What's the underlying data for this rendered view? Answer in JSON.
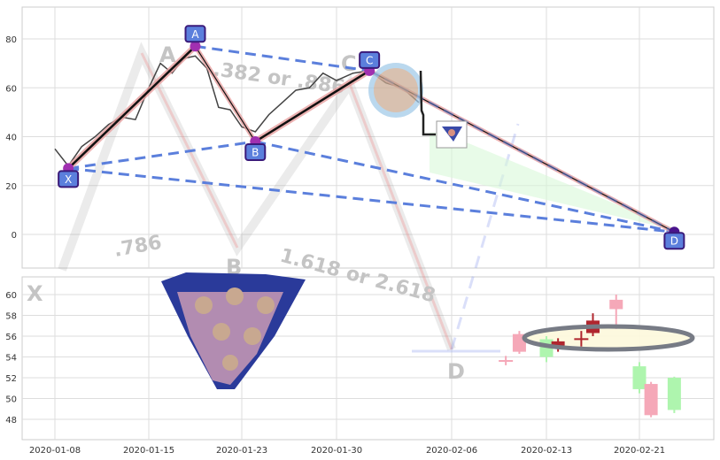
{
  "chart_data": [
    {
      "type": "line",
      "panel": "top",
      "ylim": [
        -14,
        92
      ],
      "yticks": [
        0,
        20,
        40,
        60,
        80
      ],
      "grid": true,
      "price_series": [
        [
          "2020-01-08",
          35
        ],
        [
          "2020-01-09",
          28
        ],
        [
          "2020-01-10",
          36
        ],
        [
          "2020-01-11",
          40
        ],
        [
          "2020-01-12",
          45
        ],
        [
          "2020-01-13",
          48
        ],
        [
          "2020-01-14",
          47
        ],
        [
          "2020-01-15",
          60
        ],
        [
          "2020-01-16",
          70
        ],
        [
          "2020-01-17",
          66
        ],
        [
          "2020-01-18",
          72
        ],
        [
          "2020-01-19",
          73
        ],
        [
          "2020-01-20",
          68
        ],
        [
          "2020-01-21",
          52
        ],
        [
          "2020-01-22",
          51
        ],
        [
          "2020-01-23",
          44
        ],
        [
          "2020-01-24",
          42
        ],
        [
          "2020-01-25",
          49
        ],
        [
          "2020-01-26",
          54
        ],
        [
          "2020-01-27",
          59
        ],
        [
          "2020-01-28",
          60
        ],
        [
          "2020-01-29",
          66
        ],
        [
          "2020-01-30",
          63
        ],
        [
          "2020-01-31",
          66
        ],
        [
          "2020-02-01",
          67
        ],
        [
          "2020-02-02",
          62
        ],
        [
          "2020-02-03",
          60
        ],
        [
          "2020-02-04",
          54
        ]
      ],
      "pattern_points": [
        {
          "label": "X",
          "date": "2020-01-09",
          "value": 27
        },
        {
          "label": "A",
          "date": "2020-01-19",
          "value": 77
        },
        {
          "label": "B",
          "date": "2020-01-24",
          "value": 38
        },
        {
          "label": "C",
          "date": "2020-02-01",
          "value": 67
        },
        {
          "label": "D",
          "date": "2020-02-24",
          "value": 1
        }
      ],
      "colors": {
        "line": "#444444",
        "dashed": "#5b7fdc",
        "marker": "#5b7fdc",
        "marker_border": "#3a1a7a",
        "leg_fill": "#e8a0a0",
        "zone": "#d8f8d8",
        "circle": "#9ec8e8"
      }
    },
    {
      "type": "candlestick",
      "panel": "bottom",
      "ylim": [
        46.3,
        61.8
      ],
      "yticks": [
        48,
        50,
        52,
        54,
        56,
        58,
        60
      ],
      "grid": true,
      "candles": [
        {
          "date": "2020-02-10",
          "open": 53.7,
          "close": 53.6,
          "high": 54.1,
          "low": 53.2,
          "color": "#f5a8b8"
        },
        {
          "date": "2020-02-11",
          "open": 56.2,
          "close": 54.5,
          "high": 56.5,
          "low": 54.3,
          "color": "#f5a8b8"
        },
        {
          "date": "2020-02-13",
          "open": 54.0,
          "close": 55.7,
          "high": 56.0,
          "low": 53.5,
          "color": "#aef5ae"
        },
        {
          "date": "2020-02-14",
          "open": 55.5,
          "close": 55.1,
          "high": 55.8,
          "low": 54.5,
          "color": "#b0262e"
        },
        {
          "date": "2020-02-16",
          "open": 55.8,
          "close": 55.7,
          "high": 56.5,
          "low": 55.0,
          "color": "#b0262e"
        },
        {
          "date": "2020-02-17",
          "open": 57.5,
          "close": 56.3,
          "high": 58.2,
          "low": 56.0,
          "color": "#b0262e"
        },
        {
          "date": "2020-02-19",
          "open": 59.5,
          "close": 58.6,
          "high": 60.0,
          "low": 56.7,
          "color": "#f5a8b8"
        },
        {
          "date": "2020-02-21",
          "open": 50.9,
          "close": 53.1,
          "high": 53.5,
          "low": 50.5,
          "color": "#aef5ae"
        },
        {
          "date": "2020-02-22",
          "open": 51.4,
          "close": 48.4,
          "high": 51.6,
          "low": 48.2,
          "color": "#f5a8b8"
        },
        {
          "date": "2020-02-24",
          "open": 48.9,
          "close": 52.0,
          "high": 52.1,
          "low": 48.6,
          "color": "#aef5ae"
        }
      ]
    }
  ],
  "xaxis": {
    "ticks": [
      "2020-01-08",
      "2020-01-15",
      "2020-01-23",
      "2020-01-30",
      "2020-02-06",
      "2020-02-13",
      "2020-02-21"
    ]
  },
  "watermark": {
    "ratio1": ".382 or .886",
    "ratio2": ".786",
    "ratio3": "1.618 or 2.618",
    "labels": [
      "X",
      "A",
      "B",
      "C",
      "D"
    ]
  }
}
